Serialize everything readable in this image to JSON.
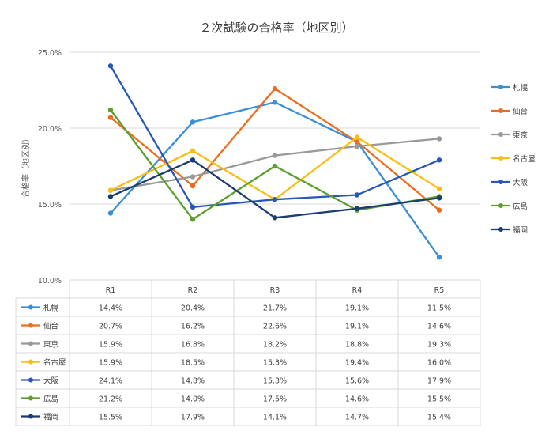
{
  "chart_data": {
    "type": "line",
    "title": "２次試験の合格率（地区別）",
    "ylabel": "合格率（地区別）",
    "xlabel": "",
    "categories": [
      "R1",
      "R2",
      "R3",
      "R4",
      "R5"
    ],
    "ylim": [
      10,
      25
    ],
    "yticks": [
      "25.0%",
      "20.0%",
      "15.0%",
      "10.0%"
    ],
    "ytick_values": [
      25,
      20,
      15,
      10
    ],
    "grid": true,
    "legend_position": "right",
    "data_table": true,
    "series": [
      {
        "name": "札幌",
        "color": "#3b8fd4",
        "values": [
          14.4,
          20.4,
          21.7,
          19.1,
          11.5
        ],
        "labels": [
          "14.4%",
          "20.4%",
          "21.7%",
          "19.1%",
          "11.5%"
        ]
      },
      {
        "name": "仙台",
        "color": "#ed6d1f",
        "values": [
          20.7,
          16.2,
          22.6,
          19.1,
          14.6
        ],
        "labels": [
          "20.7%",
          "16.2%",
          "22.6%",
          "19.1%",
          "14.6%"
        ]
      },
      {
        "name": "東京",
        "color": "#999999",
        "values": [
          15.9,
          16.8,
          18.2,
          18.8,
          19.3
        ],
        "labels": [
          "15.9%",
          "16.8%",
          "18.2%",
          "18.8%",
          "19.3%"
        ]
      },
      {
        "name": "名古屋",
        "color": "#fbbd13",
        "values": [
          15.9,
          18.5,
          15.3,
          19.4,
          16.0
        ],
        "labels": [
          "15.9%",
          "18.5%",
          "15.3%",
          "19.4%",
          "16.0%"
        ]
      },
      {
        "name": "大阪",
        "color": "#2757b8",
        "values": [
          24.1,
          14.8,
          15.3,
          15.6,
          17.9
        ],
        "labels": [
          "24.1%",
          "14.8%",
          "15.3%",
          "15.6%",
          "17.9%"
        ]
      },
      {
        "name": "広島",
        "color": "#5c9f2e",
        "values": [
          21.2,
          14.0,
          17.5,
          14.6,
          15.5
        ],
        "labels": [
          "21.2%",
          "14.0%",
          "17.5%",
          "14.6%",
          "15.5%"
        ]
      },
      {
        "name": "福岡",
        "color": "#1b3c70",
        "values": [
          15.5,
          17.9,
          14.1,
          14.7,
          15.4
        ],
        "labels": [
          "15.5%",
          "17.9%",
          "14.1%",
          "14.7%",
          "15.4%"
        ]
      }
    ]
  }
}
